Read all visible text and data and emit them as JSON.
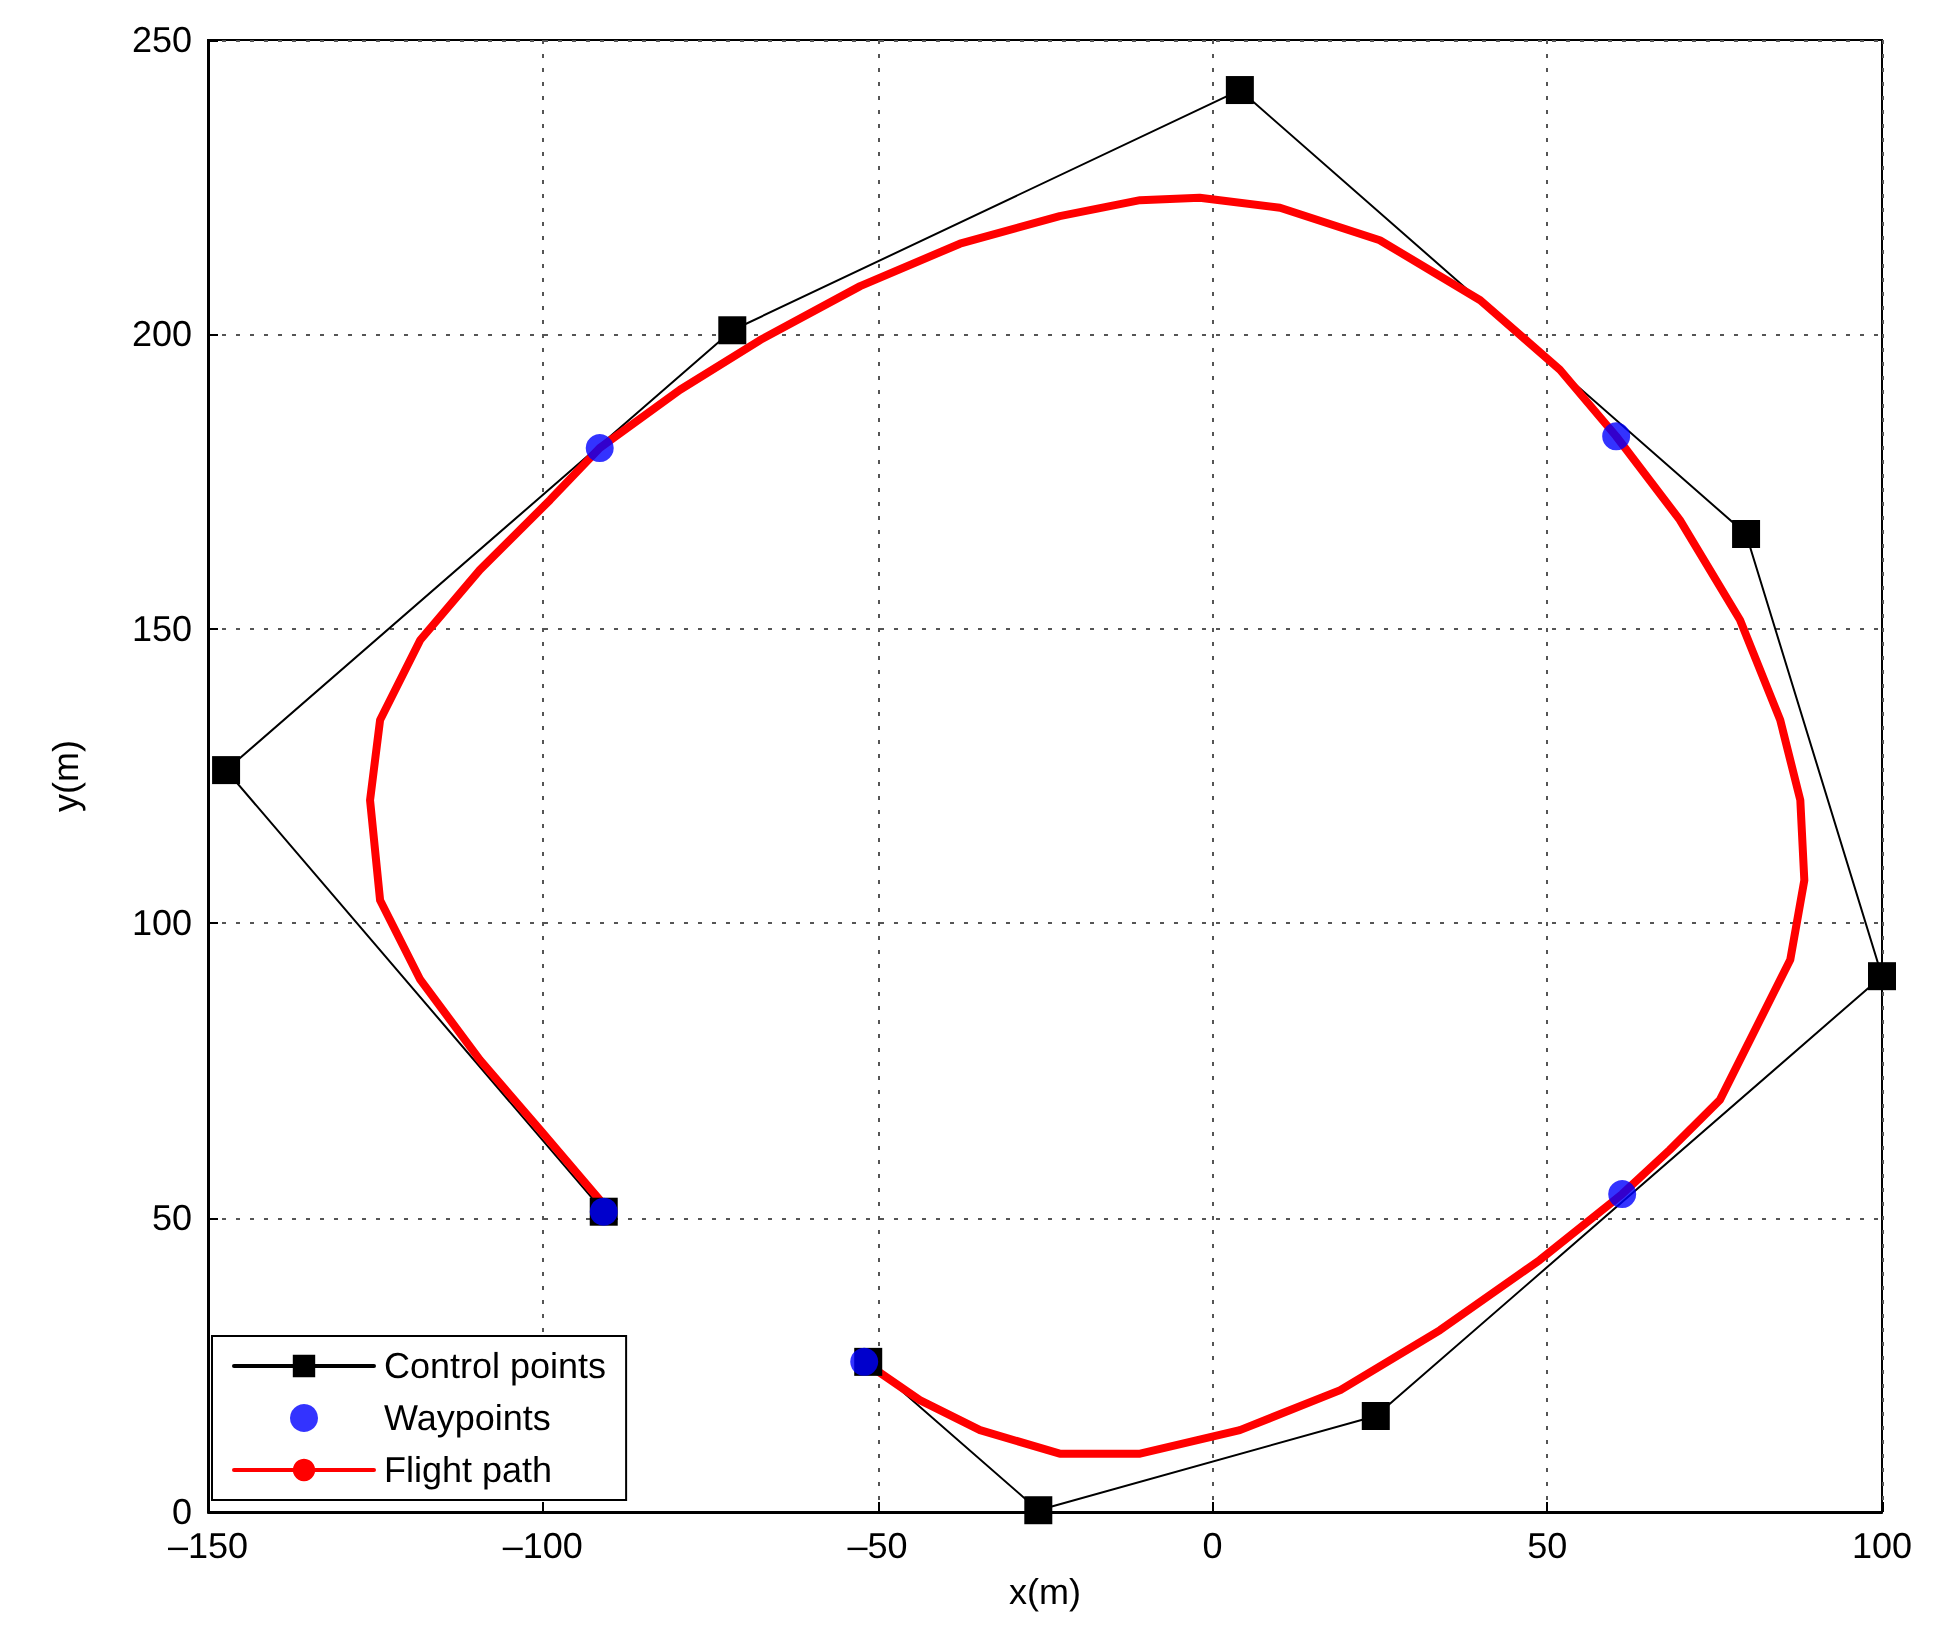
{
  "chart_data": {
    "type": "line",
    "xlabel": "x(m)",
    "ylabel": "y(m)",
    "xlim": [
      -150,
      100
    ],
    "xticks": [
      {
        "value": -150,
        "label": "–150"
      },
      {
        "value": -100,
        "label": "–100"
      },
      {
        "value": -50,
        "label": "–50"
      },
      0,
      50,
      100
    ],
    "ylim": [
      0,
      250
    ],
    "yticks": [
      0,
      50,
      100,
      150,
      200,
      250
    ],
    "grid": true,
    "legend": "bottom left",
    "series": [
      {
        "name": "Control points",
        "marker": "square",
        "line_style": "solid",
        "color": "#000000",
        "x": [
          -90.9,
          -147.3,
          -71.7,
          4.1,
          79.7,
          100,
          24.4,
          -26,
          -51.4
        ],
        "values": [
          51,
          126,
          200.7,
          241.5,
          166.1,
          91,
          16.3,
          0.3,
          25.5
        ]
      },
      {
        "name": "Waypoints",
        "type": "scatter",
        "marker": "circle",
        "color": "#0000ff",
        "x": [
          -90.9,
          -91.5,
          60.3,
          61.2,
          -52
        ],
        "values": [
          51,
          180.7,
          182.7,
          54,
          25.5
        ]
      },
      {
        "name": "Flight path",
        "marker": "none",
        "line_style": "solid",
        "color": "#ff0000",
        "x": [
          -91.5,
          -100.4,
          -109.4,
          -118.3,
          -124.3,
          -125.8,
          -124.3,
          -118.3,
          -109.4,
          -98.9,
          -91.5,
          -79.5,
          -67.6,
          -52.6,
          -37.7,
          -22.8,
          -10.8,
          -1.9,
          10.1,
          25.0,
          40.0,
          51.9,
          60.3,
          69.8,
          78.8,
          84.8,
          87.8,
          88.4,
          86.3,
          81.8,
          75.8,
          68.3,
          61.2,
          48.9,
          34.0,
          19.1,
          4.1,
          -10.8,
          -22.8,
          -34.7,
          -43.7,
          -52.0
        ],
        "values": [
          53,
          64.9,
          76.8,
          90.4,
          103.9,
          120.9,
          134.5,
          148.1,
          160,
          171.9,
          180.7,
          190.6,
          199,
          208.2,
          215.4,
          220.1,
          222.8,
          223.2,
          221.5,
          216,
          205.8,
          194,
          182.7,
          168.5,
          151.5,
          134.5,
          120.9,
          107.3,
          93.8,
          83.6,
          70,
          61.5,
          54,
          42.8,
          30.9,
          20.7,
          13.9,
          9.9,
          9.9,
          13.9,
          19,
          25.5
        ]
      }
    ]
  }
}
